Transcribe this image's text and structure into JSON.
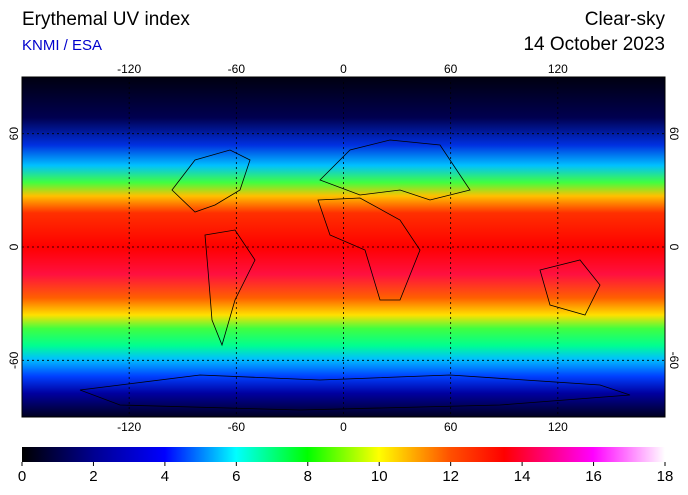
{
  "header": {
    "title": "Erythemal UV index",
    "source": "KNMI / ESA",
    "condition": "Clear-sky",
    "date": "14 October 2023"
  },
  "map": {
    "xlim": [
      -180,
      180
    ],
    "ylim": [
      -90,
      90
    ],
    "lon_ticks": [
      -120,
      -60,
      0,
      60,
      120
    ],
    "lat_ticks": [
      -60,
      0,
      60
    ]
  },
  "colorbar": {
    "lim": [
      0,
      18
    ],
    "ticks": [
      0,
      2,
      4,
      6,
      8,
      10,
      12,
      14,
      16,
      18
    ]
  }
}
